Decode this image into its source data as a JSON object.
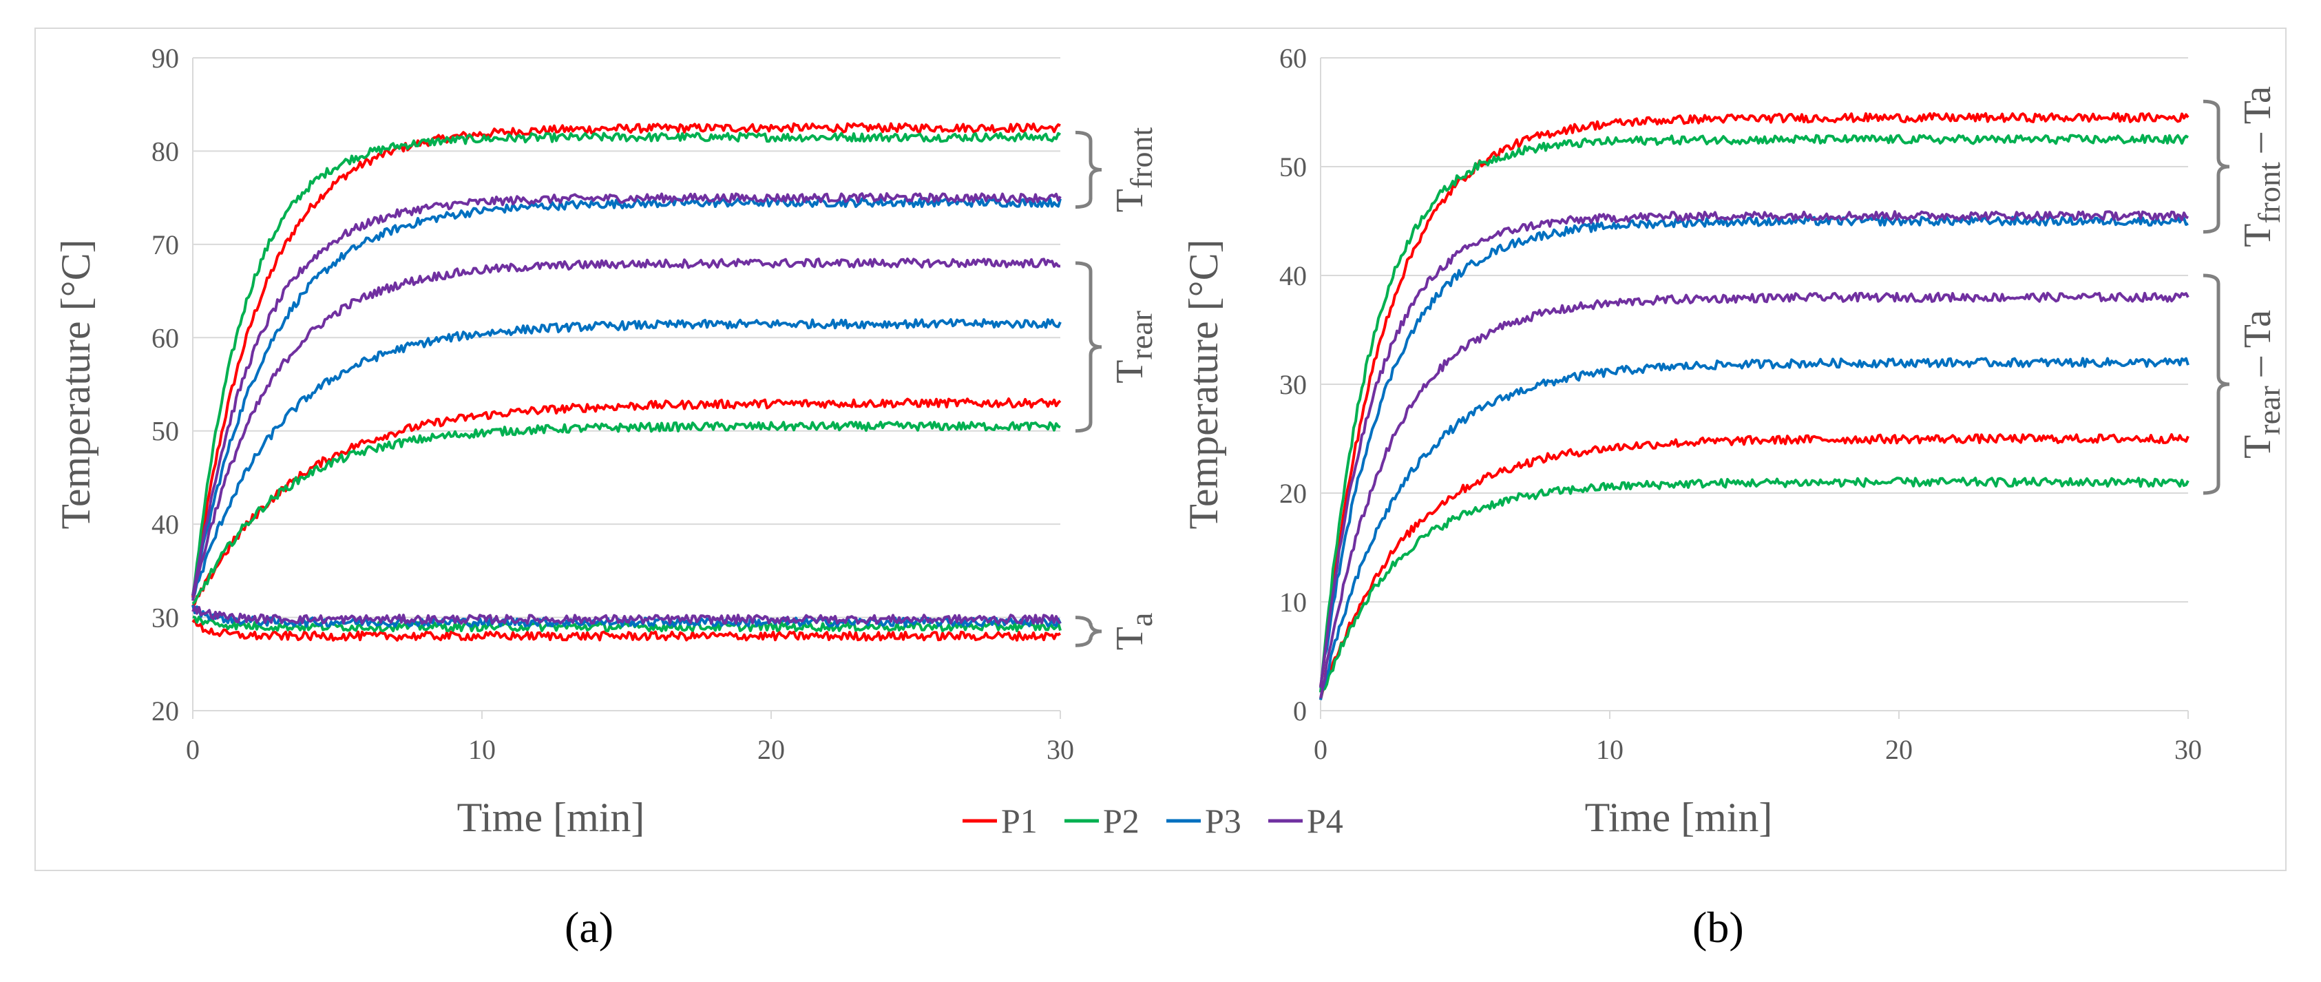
{
  "chart_data": [
    {
      "type": "line",
      "panel_label": "(a)",
      "xlabel": "Time [min]",
      "ylabel": "Temperature [°C]",
      "xlim": [
        0,
        30
      ],
      "ylim": [
        20,
        90
      ],
      "x_ticks": [
        "0",
        "10",
        "20",
        "30"
      ],
      "y_ticks": [
        "20",
        "30",
        "40",
        "50",
        "60",
        "70",
        "80",
        "90"
      ],
      "grid": "horizontal",
      "bracket_labels": [
        {
          "base": "T",
          "sub": "front",
          "range": [
            74,
            82
          ]
        },
        {
          "base": "T",
          "sub": "rear",
          "range": [
            50,
            68
          ]
        },
        {
          "base": "T",
          "sub": "a",
          "range": [
            27,
            30
          ]
        }
      ],
      "series": [
        {
          "name": "P1",
          "group": "front",
          "color": "#ff0000",
          "start": 32,
          "plateau": 82.5,
          "tau": 2.3
        },
        {
          "name": "P2",
          "group": "front",
          "color": "#00b050",
          "start": 32,
          "plateau": 81.5,
          "tau": 1.8
        },
        {
          "name": "P3",
          "group": "front",
          "color": "#0070c0",
          "start": 32,
          "plateau": 74.5,
          "tau": 2.6
        },
        {
          "name": "P4",
          "group": "front",
          "color": "#7030a0",
          "start": 32,
          "plateau": 75.0,
          "tau": 2.2
        },
        {
          "name": "P1",
          "group": "rear",
          "color": "#ff0000",
          "start": 31,
          "plateau": 53.0,
          "tau": 3.6
        },
        {
          "name": "P2",
          "group": "rear",
          "color": "#00b050",
          "start": 31,
          "plateau": 50.5,
          "tau": 3.0
        },
        {
          "name": "P3",
          "group": "rear",
          "color": "#0070c0",
          "start": 32,
          "plateau": 61.5,
          "tau": 3.0
        },
        {
          "name": "P4",
          "group": "rear",
          "color": "#7030a0",
          "start": 32,
          "plateau": 68.0,
          "tau": 2.6
        },
        {
          "name": "P1",
          "group": "ambient",
          "color": "#ff0000",
          "start": 29.5,
          "plateau": 28.0,
          "tau": 0.6
        },
        {
          "name": "P2",
          "group": "ambient",
          "color": "#00b050",
          "start": 30.0,
          "plateau": 29.0,
          "tau": 0.8
        },
        {
          "name": "P3",
          "group": "ambient",
          "color": "#0070c0",
          "start": 31.0,
          "plateau": 29.5,
          "tau": 0.8
        },
        {
          "name": "P4",
          "group": "ambient",
          "color": "#7030a0",
          "start": 31.0,
          "plateau": 29.8,
          "tau": 0.8
        }
      ]
    },
    {
      "type": "line",
      "panel_label": "(b)",
      "xlabel": "Time [min]",
      "ylabel": "Temperature [°C]",
      "xlim": [
        0,
        30
      ],
      "ylim": [
        0,
        60
      ],
      "x_ticks": [
        "0",
        "10",
        "20",
        "30"
      ],
      "y_ticks": [
        "0",
        "10",
        "20",
        "30",
        "40",
        "50",
        "60"
      ],
      "grid": "horizontal",
      "bracket_labels": [
        {
          "base": "T",
          "sub": "front",
          "suffix": " – Ta",
          "range": [
            44,
            56
          ]
        },
        {
          "base": "T",
          "sub": "rear",
          "suffix": " – Ta",
          "range": [
            20,
            40
          ]
        }
      ],
      "series": [
        {
          "name": "P1",
          "group": "front",
          "color": "#ff0000",
          "start": 2,
          "plateau": 54.5,
          "tau": 2.2
        },
        {
          "name": "P2",
          "group": "front",
          "color": "#00b050",
          "start": 2,
          "plateau": 52.5,
          "tau": 1.8
        },
        {
          "name": "P3",
          "group": "front",
          "color": "#0070c0",
          "start": 2,
          "plateau": 45.0,
          "tau": 2.2
        },
        {
          "name": "P4",
          "group": "front",
          "color": "#7030a0",
          "start": 2,
          "plateau": 45.5,
          "tau": 1.9
        },
        {
          "name": "P1",
          "group": "rear",
          "color": "#ff0000",
          "start": 1,
          "plateau": 25.0,
          "tau": 3.0
        },
        {
          "name": "P2",
          "group": "rear",
          "color": "#00b050",
          "start": 1,
          "plateau": 21.0,
          "tau": 2.6
        },
        {
          "name": "P3",
          "group": "rear",
          "color": "#0070c0",
          "start": 1,
          "plateau": 32.0,
          "tau": 2.8
        },
        {
          "name": "P4",
          "group": "rear",
          "color": "#7030a0",
          "start": 1,
          "plateau": 38.0,
          "tau": 2.4
        }
      ]
    }
  ],
  "legend": {
    "placement": "bottom-center",
    "items": [
      {
        "label": "P1",
        "color": "#ff0000"
      },
      {
        "label": "P2",
        "color": "#00b050"
      },
      {
        "label": "P3",
        "color": "#0070c0"
      },
      {
        "label": "P4",
        "color": "#7030a0"
      }
    ]
  },
  "colors": {
    "axis": "#d9d9d9",
    "text": "#595959",
    "grid": "#d9d9d9",
    "bracket": "#808080"
  }
}
